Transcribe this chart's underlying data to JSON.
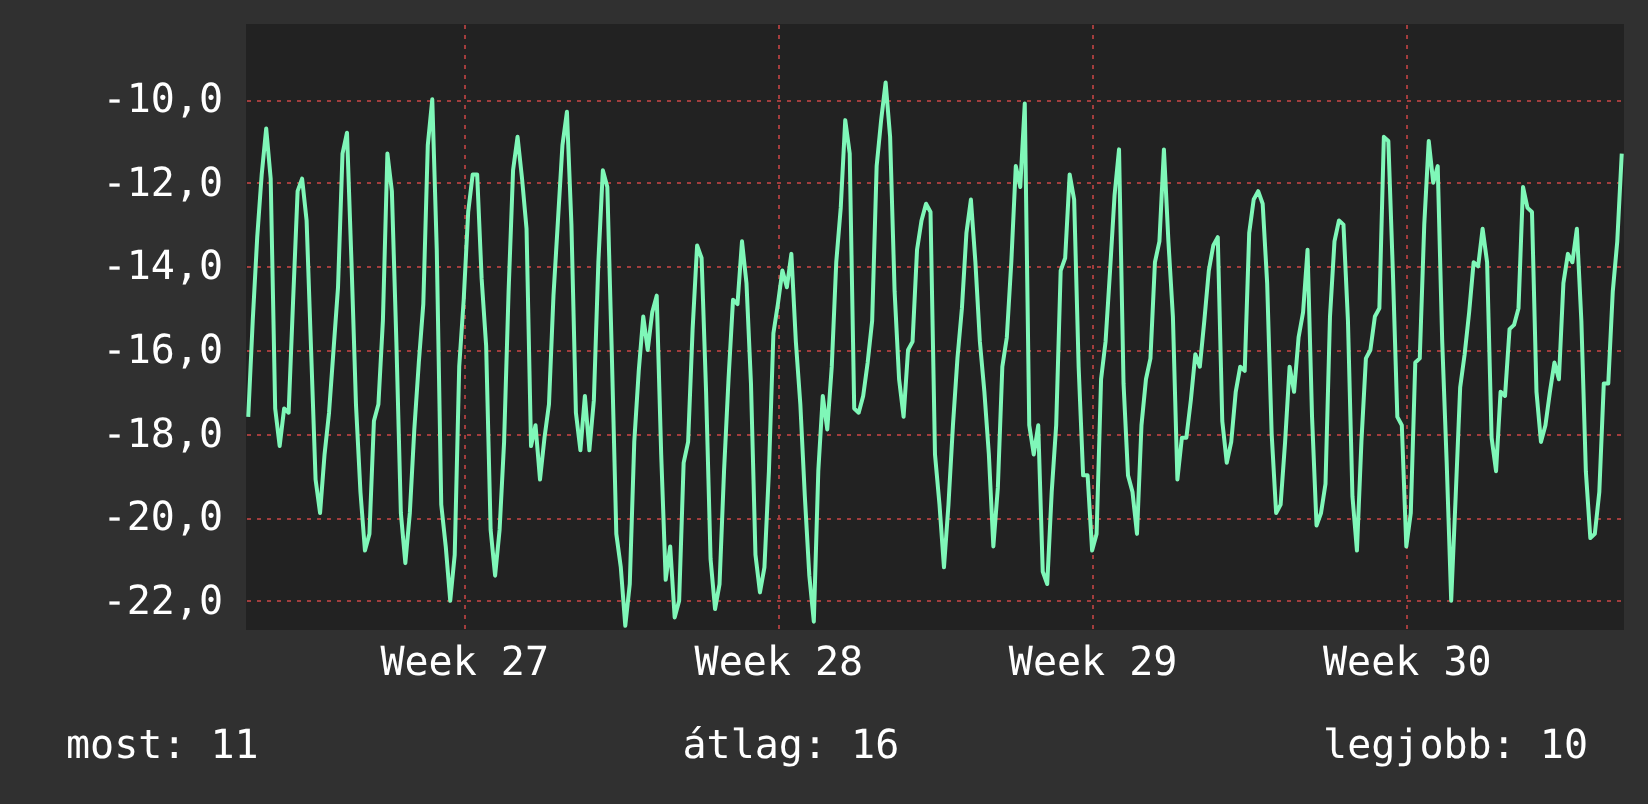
{
  "chart_data": {
    "type": "line",
    "annotations": [
      "most: 11",
      "átlag: 16",
      "legjobb: 10"
    ],
    "ylim": [
      -22.7,
      -8.2
    ],
    "yticks": [
      {
        "value": -10,
        "label": "-10,0"
      },
      {
        "value": -12,
        "label": "-12,0"
      },
      {
        "value": -14,
        "label": "-14,0"
      },
      {
        "value": -16,
        "label": "-16,0"
      },
      {
        "value": -18,
        "label": "-18,0"
      },
      {
        "value": -20,
        "label": "-20,0"
      },
      {
        "value": -22,
        "label": "-22,0"
      }
    ],
    "grid": true,
    "categories": [
      null,
      null,
      null,
      null,
      null,
      null,
      null,
      null,
      null,
      null,
      null,
      null,
      null,
      null,
      null,
      null,
      null,
      null,
      null,
      null,
      null,
      null,
      null,
      null,
      null,
      null,
      null,
      null,
      null,
      null,
      null,
      null,
      null,
      null,
      null,
      null,
      null,
      null,
      null,
      null,
      null,
      null,
      null,
      null,
      null,
      null,
      null,
      null,
      "Week 27",
      null,
      null,
      null,
      null,
      null,
      null,
      null,
      null,
      null,
      null,
      null,
      null,
      null,
      null,
      null,
      null,
      null,
      null,
      null,
      null,
      null,
      null,
      null,
      null,
      null,
      null,
      null,
      null,
      null,
      null,
      null,
      null,
      null,
      null,
      null,
      null,
      null,
      null,
      null,
      null,
      null,
      null,
      null,
      null,
      null,
      null,
      null,
      null,
      null,
      null,
      null,
      null,
      null,
      null,
      null,
      null,
      null,
      null,
      null,
      null,
      null,
      null,
      null,
      null,
      null,
      null,
      null,
      null,
      null,
      "Week 28",
      null,
      null,
      null,
      null,
      null,
      null,
      null,
      null,
      null,
      null,
      null,
      null,
      null,
      null,
      null,
      null,
      null,
      null,
      null,
      null,
      null,
      null,
      null,
      null,
      null,
      null,
      null,
      null,
      null,
      null,
      null,
      null,
      null,
      null,
      null,
      null,
      null,
      null,
      null,
      null,
      null,
      null,
      null,
      null,
      null,
      null,
      null,
      null,
      null,
      null,
      null,
      null,
      null,
      null,
      null,
      null,
      null,
      null,
      null,
      null,
      null,
      null,
      null,
      null,
      null,
      null,
      null,
      null,
      null,
      "Week 29",
      null,
      null,
      null,
      null,
      null,
      null,
      null,
      null,
      null,
      null,
      null,
      null,
      null,
      null,
      null,
      null,
      null,
      null,
      null,
      null,
      null,
      null,
      null,
      null,
      null,
      null,
      null,
      null,
      null,
      null,
      null,
      null,
      null,
      null,
      null,
      null,
      null,
      null,
      null,
      null,
      null,
      null,
      null,
      null,
      null,
      null,
      null,
      null,
      null,
      null,
      null,
      null,
      null,
      null,
      null,
      null,
      null,
      null,
      null,
      null,
      null,
      null,
      null,
      null,
      null,
      null,
      null,
      null,
      null,
      "Week 30",
      null,
      null,
      null,
      null,
      null,
      null,
      null,
      null,
      null,
      null,
      null,
      null,
      null,
      null,
      null,
      null,
      null,
      null,
      null,
      null,
      null,
      null,
      null,
      null,
      null,
      null,
      null,
      null,
      null,
      null,
      null,
      null,
      null,
      null,
      null,
      null,
      null,
      null,
      null,
      null,
      null,
      null,
      null,
      null,
      null,
      null,
      null,
      null
    ],
    "series": [
      {
        "color": "#7ff7b8",
        "values": [
          -17.6,
          -15.3,
          -13.3,
          -11.8,
          -10.7,
          -11.9,
          -17.4,
          -18.3,
          -17.4,
          -17.5,
          -14.8,
          -12.2,
          -11.9,
          -12.9,
          -16.0,
          -19.1,
          -19.9,
          -18.5,
          -17.5,
          -16.0,
          -14.5,
          -11.3,
          -10.8,
          -13.9,
          -17.3,
          -19.4,
          -20.8,
          -20.4,
          -17.7,
          -17.3,
          -15.3,
          -11.3,
          -12.2,
          -15.8,
          -19.9,
          -21.1,
          -19.9,
          -17.9,
          -16.3,
          -14.9,
          -11.1,
          -10.0,
          -13.6,
          -19.7,
          -20.7,
          -22.0,
          -20.9,
          -16.4,
          -14.8,
          -12.7,
          -11.8,
          -11.8,
          -14.3,
          -15.9,
          -20.3,
          -21.4,
          -20.3,
          -18.2,
          -14.6,
          -11.7,
          -10.9,
          -11.9,
          -13.1,
          -18.3,
          -17.8,
          -19.1,
          -18.1,
          -17.3,
          -14.7,
          -12.9,
          -11.1,
          -10.3,
          -13.0,
          -17.5,
          -18.4,
          -17.1,
          -18.4,
          -17.2,
          -13.9,
          -11.7,
          -12.1,
          -16.1,
          -20.4,
          -21.2,
          -22.6,
          -21.6,
          -18.2,
          -16.5,
          -15.2,
          -16.0,
          -15.1,
          -14.7,
          -18.5,
          -21.5,
          -20.7,
          -22.4,
          -22.0,
          -18.7,
          -18.2,
          -15.5,
          -13.5,
          -13.8,
          -17.0,
          -21.0,
          -22.2,
          -21.6,
          -18.9,
          -16.7,
          -14.8,
          -14.9,
          -13.4,
          -14.4,
          -16.8,
          -20.9,
          -21.8,
          -21.2,
          -18.9,
          -15.6,
          -14.9,
          -14.1,
          -14.5,
          -13.7,
          -15.8,
          -17.3,
          -19.5,
          -21.4,
          -22.5,
          -18.9,
          -17.1,
          -17.9,
          -16.4,
          -13.9,
          -12.6,
          -10.5,
          -11.3,
          -17.4,
          -17.5,
          -17.1,
          -16.3,
          -15.3,
          -11.6,
          -10.5,
          -9.6,
          -10.9,
          -14.6,
          -16.7,
          -17.6,
          -16.0,
          -15.8,
          -13.6,
          -12.9,
          -12.5,
          -12.7,
          -18.5,
          -19.7,
          -21.2,
          -19.7,
          -17.8,
          -16.2,
          -15.0,
          -13.2,
          -12.4,
          -13.9,
          -15.8,
          -17.0,
          -18.5,
          -20.7,
          -19.3,
          -16.4,
          -15.7,
          -13.9,
          -11.6,
          -12.1,
          -10.1,
          -17.8,
          -18.5,
          -17.8,
          -21.3,
          -21.6,
          -19.4,
          -17.8,
          -14.1,
          -13.8,
          -11.8,
          -12.4,
          -16.4,
          -19.0,
          -19.0,
          -20.8,
          -20.4,
          -16.7,
          -15.8,
          -14.1,
          -12.3,
          -11.2,
          -16.8,
          -19.0,
          -19.4,
          -20.4,
          -17.8,
          -16.7,
          -16.2,
          -13.9,
          -13.4,
          -11.2,
          -13.4,
          -15.2,
          -19.1,
          -18.1,
          -18.1,
          -17.2,
          -16.1,
          -16.4,
          -15.3,
          -14.1,
          -13.5,
          -13.3,
          -17.7,
          -18.7,
          -18.2,
          -17.0,
          -16.4,
          -16.5,
          -13.2,
          -12.4,
          -12.2,
          -12.5,
          -14.4,
          -18.0,
          -19.9,
          -19.7,
          -18.2,
          -16.4,
          -17.0,
          -15.7,
          -15.1,
          -13.6,
          -17.6,
          -20.2,
          -19.9,
          -19.2,
          -15.2,
          -13.4,
          -12.9,
          -13.0,
          -15.3,
          -19.5,
          -20.8,
          -18.2,
          -16.2,
          -16.0,
          -15.2,
          -15.0,
          -10.9,
          -11.0,
          -14.1,
          -17.6,
          -17.8,
          -20.7,
          -19.9,
          -16.3,
          -16.2,
          -13.0,
          -11.0,
          -12.0,
          -11.6,
          -15.8,
          -18.7,
          -22.0,
          -19.5,
          -16.9,
          -16.1,
          -15.1,
          -13.9,
          -14.0,
          -13.1,
          -13.9,
          -18.1,
          -18.9,
          -17.0,
          -17.1,
          -15.5,
          -15.4,
          -15.0,
          -12.1,
          -12.6,
          -12.7,
          -17.0,
          -18.2,
          -17.8,
          -17.0,
          -16.3,
          -16.7,
          -14.4,
          -13.7,
          -13.9,
          -13.1,
          -15.3,
          -18.9,
          -20.5,
          -20.4,
          -19.4,
          -16.8,
          -16.8,
          -14.6,
          -13.4,
          -11.3
        ]
      }
    ]
  }
}
